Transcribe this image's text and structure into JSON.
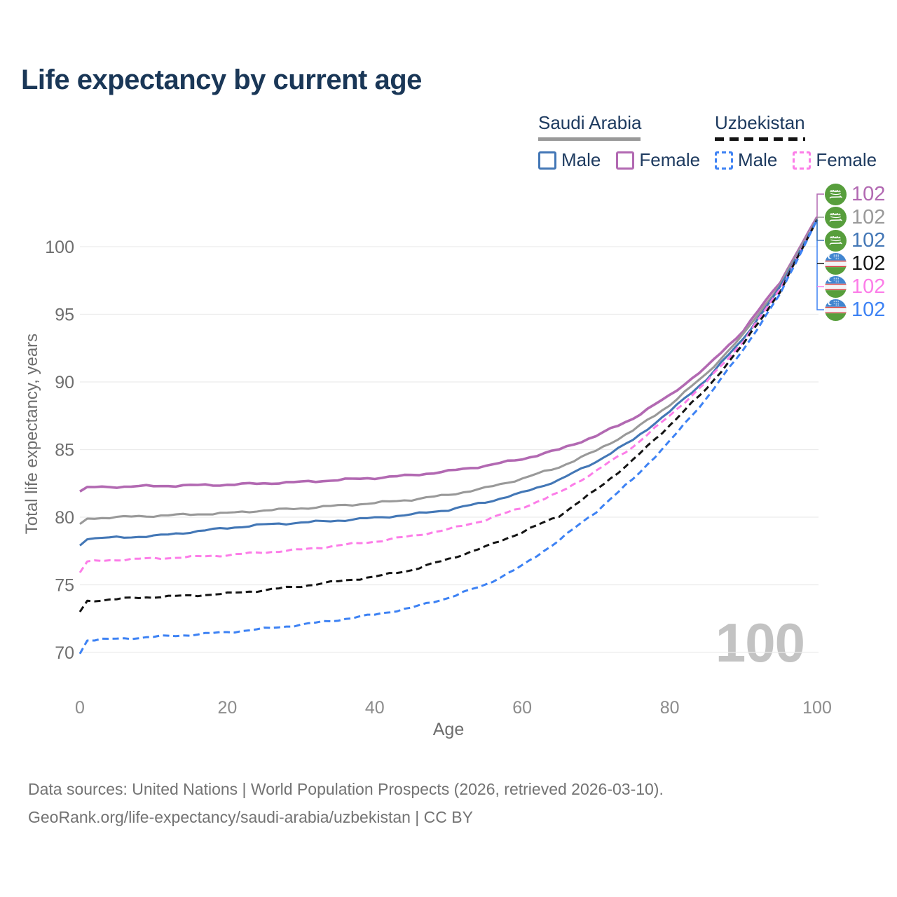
{
  "title": "Life expectancy by current age",
  "legend": {
    "groups": [
      {
        "name": "Saudi Arabia",
        "line_style": "solid",
        "underline_color": "#999999",
        "items": [
          {
            "label": "Male",
            "color": "#4377b6",
            "dashed": false
          },
          {
            "label": "Female",
            "color": "#b269b2",
            "dashed": false
          }
        ]
      },
      {
        "name": "Uzbekistan",
        "line_style": "dashed",
        "underline_color": "#141414",
        "items": [
          {
            "label": "Male",
            "color": "#3d82f4",
            "dashed": true
          },
          {
            "label": "Female",
            "color": "#fc7de8",
            "dashed": true
          }
        ]
      }
    ]
  },
  "chart_data": {
    "type": "line",
    "title": "Life expectancy by current age",
    "xlabel": "Age",
    "ylabel": "Total life expectancy, years",
    "xticks": [
      0,
      20,
      40,
      60,
      80,
      100
    ],
    "yticks": [
      70,
      75,
      80,
      85,
      90,
      95,
      100
    ],
    "xlim": [
      0,
      100
    ],
    "ylim": [
      69,
      102.5
    ],
    "grid": "horizontal",
    "x_knots": [
      0,
      1,
      5,
      10,
      15,
      20,
      25,
      30,
      35,
      40,
      45,
      50,
      55,
      60,
      65,
      70,
      75,
      80,
      85,
      90,
      95,
      100
    ],
    "series": [
      {
        "name": "Saudi Arabia Female",
        "country": "Saudi Arabia",
        "sex": "Female",
        "color": "#b269b2",
        "dashed": false,
        "values": [
          81.9,
          82.2,
          82.25,
          82.3,
          82.35,
          82.4,
          82.5,
          82.6,
          82.75,
          82.9,
          83.1,
          83.4,
          83.8,
          84.3,
          85.0,
          86.0,
          87.3,
          89.0,
          91.1,
          93.8,
          97.4,
          102.2
        ]
      },
      {
        "name": "Saudi Arabia Total",
        "country": "Saudi Arabia",
        "sex": "Both",
        "color": "#999999",
        "dashed": false,
        "values": [
          79.5,
          79.9,
          80.0,
          80.1,
          80.2,
          80.3,
          80.5,
          80.65,
          80.85,
          81.05,
          81.3,
          81.65,
          82.15,
          82.85,
          83.7,
          84.9,
          86.4,
          88.3,
          90.6,
          93.5,
          97.2,
          102.1
        ]
      },
      {
        "name": "Saudi Arabia Male",
        "country": "Saudi Arabia",
        "sex": "Male",
        "color": "#4377b6",
        "dashed": false,
        "values": [
          77.9,
          78.4,
          78.5,
          78.6,
          78.9,
          79.2,
          79.45,
          79.6,
          79.75,
          79.95,
          80.2,
          80.55,
          81.1,
          81.8,
          82.75,
          84.1,
          85.7,
          87.8,
          90.2,
          93.2,
          97.0,
          102.0
        ]
      },
      {
        "name": "Uzbekistan Female",
        "country": "Uzbekistan",
        "sex": "Female",
        "color": "#fc7de8",
        "dashed": true,
        "values": [
          75.9,
          76.7,
          76.85,
          76.95,
          77.05,
          77.2,
          77.4,
          77.6,
          77.9,
          78.2,
          78.6,
          79.1,
          79.8,
          80.7,
          81.8,
          83.4,
          85.2,
          87.5,
          90.0,
          93.0,
          96.9,
          102.0
        ]
      },
      {
        "name": "Uzbekistan Total",
        "country": "Uzbekistan",
        "sex": "Both",
        "color": "#141414",
        "dashed": true,
        "values": [
          73.0,
          73.8,
          73.95,
          74.1,
          74.2,
          74.35,
          74.6,
          74.9,
          75.25,
          75.6,
          76.1,
          76.9,
          77.8,
          78.9,
          80.1,
          82.0,
          84.2,
          86.8,
          89.5,
          92.8,
          96.7,
          102.0
        ]
      },
      {
        "name": "Uzbekistan Male",
        "country": "Uzbekistan",
        "sex": "Male",
        "color": "#3d82f4",
        "dashed": true,
        "values": [
          69.9,
          70.9,
          71.0,
          71.15,
          71.3,
          71.5,
          71.75,
          72.05,
          72.4,
          72.8,
          73.3,
          74.05,
          75.0,
          76.4,
          78.3,
          80.4,
          82.8,
          85.6,
          88.8,
          92.4,
          96.5,
          102.0
        ]
      }
    ]
  },
  "end_labels": [
    {
      "flag": "sa",
      "country": "Saudi Arabia",
      "value": "102",
      "color": "#b269b2"
    },
    {
      "flag": "sa",
      "country": "Saudi Arabia",
      "value": "102",
      "color": "#999999"
    },
    {
      "flag": "sa",
      "country": "Saudi Arabia",
      "value": "102",
      "color": "#4377b6"
    },
    {
      "flag": "uz",
      "country": "Uzbekistan",
      "value": "102",
      "color": "#141414"
    },
    {
      "flag": "uz",
      "country": "Uzbekistan",
      "value": "102",
      "color": "#fc7de8"
    },
    {
      "flag": "uz",
      "country": "Uzbekistan",
      "value": "102",
      "color": "#3d82f4"
    }
  ],
  "watermark": "100",
  "footer": {
    "line1": "Data sources: United Nations | World Population Prospects (2026, retrieved 2026-03-10).",
    "line2": "GeoRank.org/life-expectancy/saudi-arabia/uzbekistan | CC BY"
  }
}
